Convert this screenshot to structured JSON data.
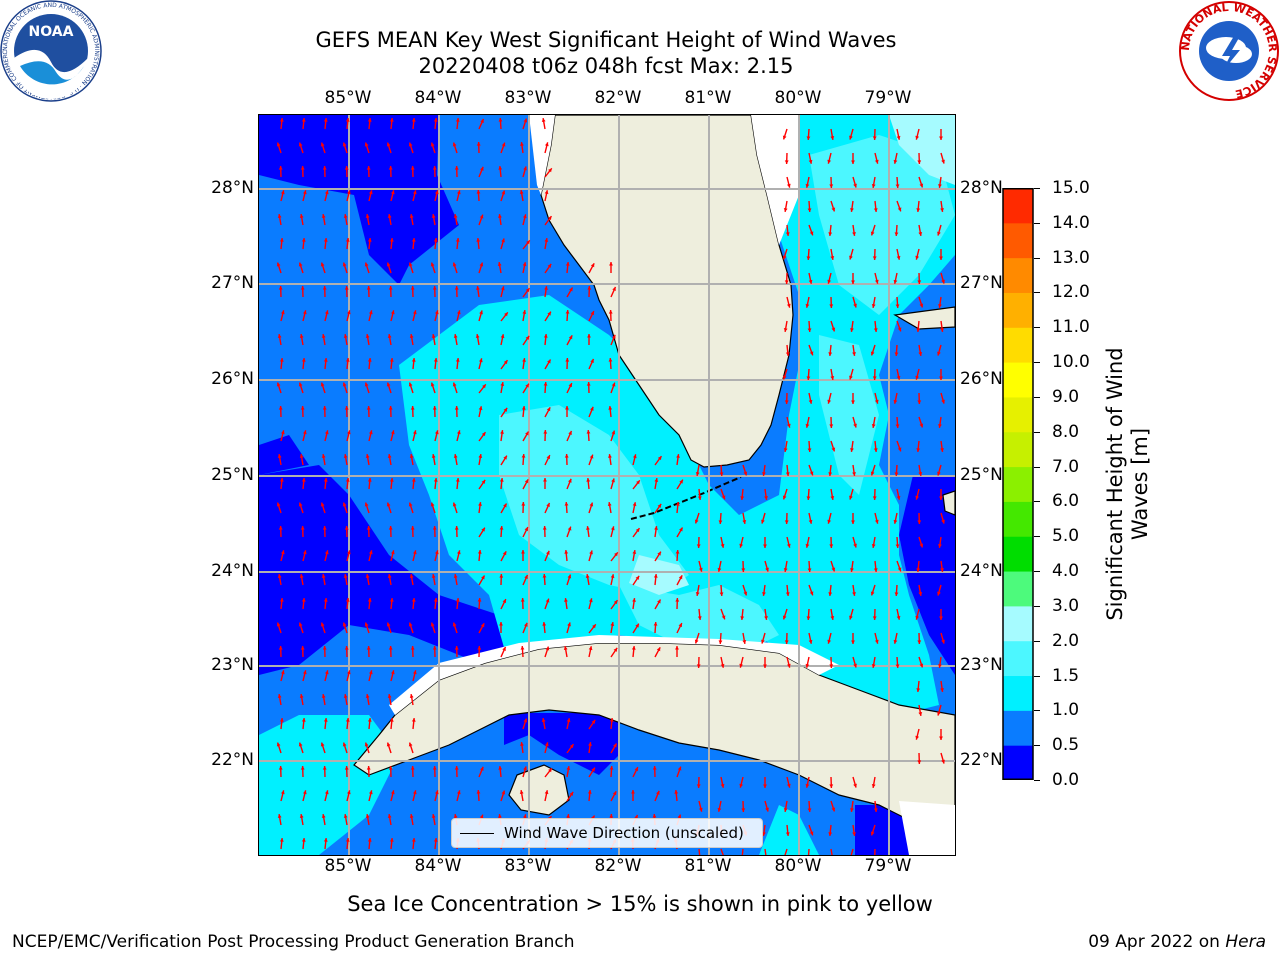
{
  "title_line1": "GEFS MEAN Key West Significant Height of Wind Waves",
  "title_line2": "20220408 t06z 048h fcst   Max: 2.15",
  "lon_labels": [
    "85°W",
    "84°W",
    "83°W",
    "82°W",
    "81°W",
    "80°W",
    "79°W"
  ],
  "lat_labels": [
    "28°N",
    "27°N",
    "26°N",
    "25°N",
    "24°N",
    "23°N",
    "22°N"
  ],
  "legend_label": "Wind Wave Direction (unscaled)",
  "colorbar": {
    "title_line1": "Significant Height of Wind",
    "title_line2": "Waves [m]",
    "ticks": [
      "0.0",
      "0.5",
      "1.0",
      "1.5",
      "2.0",
      "3.0",
      "4.0",
      "5.0",
      "6.0",
      "7.0",
      "8.0",
      "9.0",
      "10.0",
      "11.0",
      "12.0",
      "13.0",
      "14.0",
      "15.0"
    ],
    "colors": [
      "#0000ff",
      "#0a7cff",
      "#00f0ff",
      "#4cf7ff",
      "#a6fbff",
      "#4dfa7c",
      "#00dd00",
      "#44e800",
      "#8bf000",
      "#c6f000",
      "#e6f000",
      "#ffff00",
      "#ffdc00",
      "#ffb000",
      "#ff8a00",
      "#ff5a00",
      "#ff2a00",
      "#ff0000"
    ]
  },
  "footer_note": "Sea Ice Concentration > 15% is shown in pink to yellow",
  "footer_left": "NCEP/EMC/Verification Post Processing Product Generation Branch",
  "footer_right_date": "09 Apr 2022 on",
  "footer_right_host": "Hera",
  "logos": {
    "noaa_text": "NOAA",
    "noaa_ring_text": "NATIONAL OCEANIC AND ATMOSPHERIC ADMINISTRATION · U.S. DEPARTMENT OF COMMERCE",
    "nws_ring_text": "NATIONAL WEATHER SERVICE"
  },
  "map_colors": {
    "land": "#eeeedd",
    "grid": "#b0b0b0",
    "arrows": "#ff0000",
    "coast": "#000000"
  }
}
